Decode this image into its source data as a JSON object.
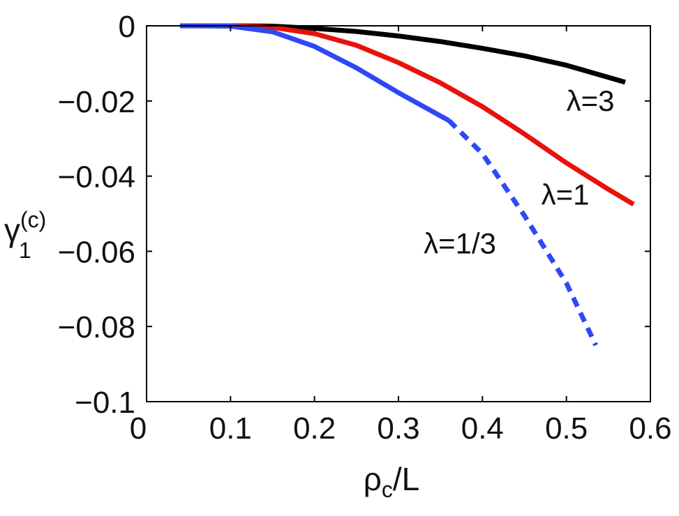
{
  "chart_data": {
    "type": "line",
    "xlabel": {
      "base": "ρ",
      "sub": "c",
      "rest": "/L"
    },
    "ylabel": {
      "base": "γ",
      "sub": "1",
      "sup": "(c)"
    },
    "xlim": [
      0,
      0.6
    ],
    "ylim": [
      -0.1,
      0
    ],
    "x_ticks": [
      0,
      0.1,
      0.2,
      0.3,
      0.4,
      0.5,
      0.6
    ],
    "x_tick_labels": [
      "0",
      "0.1",
      "0.2",
      "0.3",
      "0.4",
      "0.5",
      "0.6"
    ],
    "y_ticks": [
      0,
      -0.02,
      -0.04,
      -0.06,
      -0.08,
      -0.1
    ],
    "y_tick_labels": [
      "0",
      "−0.02",
      "−0.04",
      "−0.06",
      "−0.08",
      "−0.1"
    ],
    "grid": false,
    "series": [
      {
        "name": "λ=3",
        "color": "#000000",
        "style": "solid",
        "points": [
          [
            0.04,
            0.0
          ],
          [
            0.1,
            0.0
          ],
          [
            0.15,
            -0.0001
          ],
          [
            0.2,
            -0.0007
          ],
          [
            0.25,
            -0.0015
          ],
          [
            0.3,
            -0.0027
          ],
          [
            0.35,
            -0.0042
          ],
          [
            0.4,
            -0.006
          ],
          [
            0.45,
            -0.008
          ],
          [
            0.5,
            -0.0105
          ],
          [
            0.57,
            -0.015
          ]
        ]
      },
      {
        "name": "λ=1",
        "color": "#e8120c",
        "style": "solid",
        "points": [
          [
            0.04,
            0.0
          ],
          [
            0.1,
            0.0
          ],
          [
            0.15,
            -0.0004
          ],
          [
            0.2,
            -0.0021
          ],
          [
            0.25,
            -0.0052
          ],
          [
            0.3,
            -0.0098
          ],
          [
            0.35,
            -0.0152
          ],
          [
            0.4,
            -0.0215
          ],
          [
            0.45,
            -0.0288
          ],
          [
            0.5,
            -0.0365
          ],
          [
            0.55,
            -0.0435
          ],
          [
            0.58,
            -0.0475
          ]
        ]
      },
      {
        "name": "λ=1/3",
        "color": "#2f48f5",
        "style": "solid",
        "points": [
          [
            0.04,
            0.0
          ],
          [
            0.1,
            -0.0001
          ],
          [
            0.15,
            -0.0016
          ],
          [
            0.2,
            -0.0055
          ],
          [
            0.25,
            -0.0112
          ],
          [
            0.3,
            -0.0178
          ],
          [
            0.36,
            -0.0252
          ]
        ]
      },
      {
        "name": "λ=1/3",
        "color": "#2f48f5",
        "style": "dashed",
        "points": [
          [
            0.36,
            -0.0252
          ],
          [
            0.4,
            -0.034
          ],
          [
            0.45,
            -0.0505
          ],
          [
            0.5,
            -0.0685
          ],
          [
            0.535,
            -0.085
          ]
        ]
      }
    ],
    "annotations": [
      {
        "text": "λ=3",
        "x": 0.5,
        "y": -0.02
      },
      {
        "text": "λ=1",
        "x": 0.47,
        "y": -0.045
      },
      {
        "text": "λ=1/3",
        "x": 0.33,
        "y": -0.058
      }
    ]
  }
}
